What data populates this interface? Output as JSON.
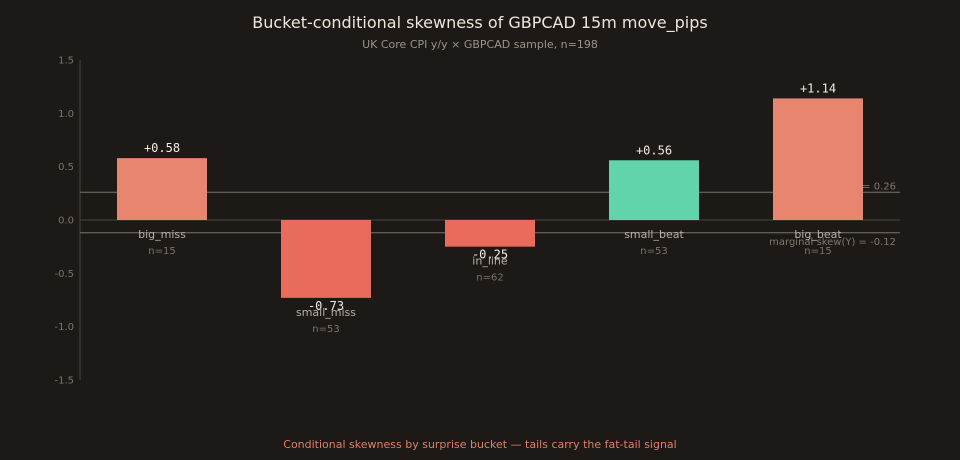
{
  "chart_data": {
    "type": "bar",
    "title": "Bucket-conditional skewness of GBPCAD 15m move_pips",
    "subtitle": "UK Core CPI y/y × GBPCAD sample, n=198",
    "categories": [
      "big_miss",
      "small_miss",
      "in_line",
      "small_beat",
      "big_beat"
    ],
    "counts": [
      "n=15",
      "n=53",
      "n=62",
      "n=53",
      "n=15"
    ],
    "values": [
      0.58,
      -0.73,
      -0.25,
      0.56,
      1.14
    ],
    "value_labels": [
      "+0.58",
      "-0.73",
      "-0.25",
      "+0.56",
      "+1.14"
    ],
    "bar_colors": [
      "#e8856f",
      "#e86b5c",
      "#e86b5c",
      "#62d4ab",
      "#e8856f"
    ],
    "ylim": [
      -1.5,
      1.5
    ],
    "yticks": [
      "-1.5",
      "-1.0",
      "-0.5",
      "0.0",
      "0.5",
      "1.0",
      "1.5"
    ],
    "ytick_values": [
      -1.5,
      -1.0,
      -0.5,
      0.0,
      0.5,
      1.0,
      1.5
    ],
    "reference_lines": [
      {
        "value": 0.26,
        "label": "= 0.26"
      },
      {
        "value": -0.12,
        "label": "marginal skew(Y) = -0.12"
      }
    ],
    "grid": false,
    "xlabel": "",
    "ylabel": ""
  },
  "footer": "Conditional skewness by surprise bucket — tails carry the fat-tail signal",
  "colors": {
    "background": "#1c1916",
    "axis": "#4a453f",
    "reference": "#7a746b",
    "footer": "#e07f66"
  }
}
